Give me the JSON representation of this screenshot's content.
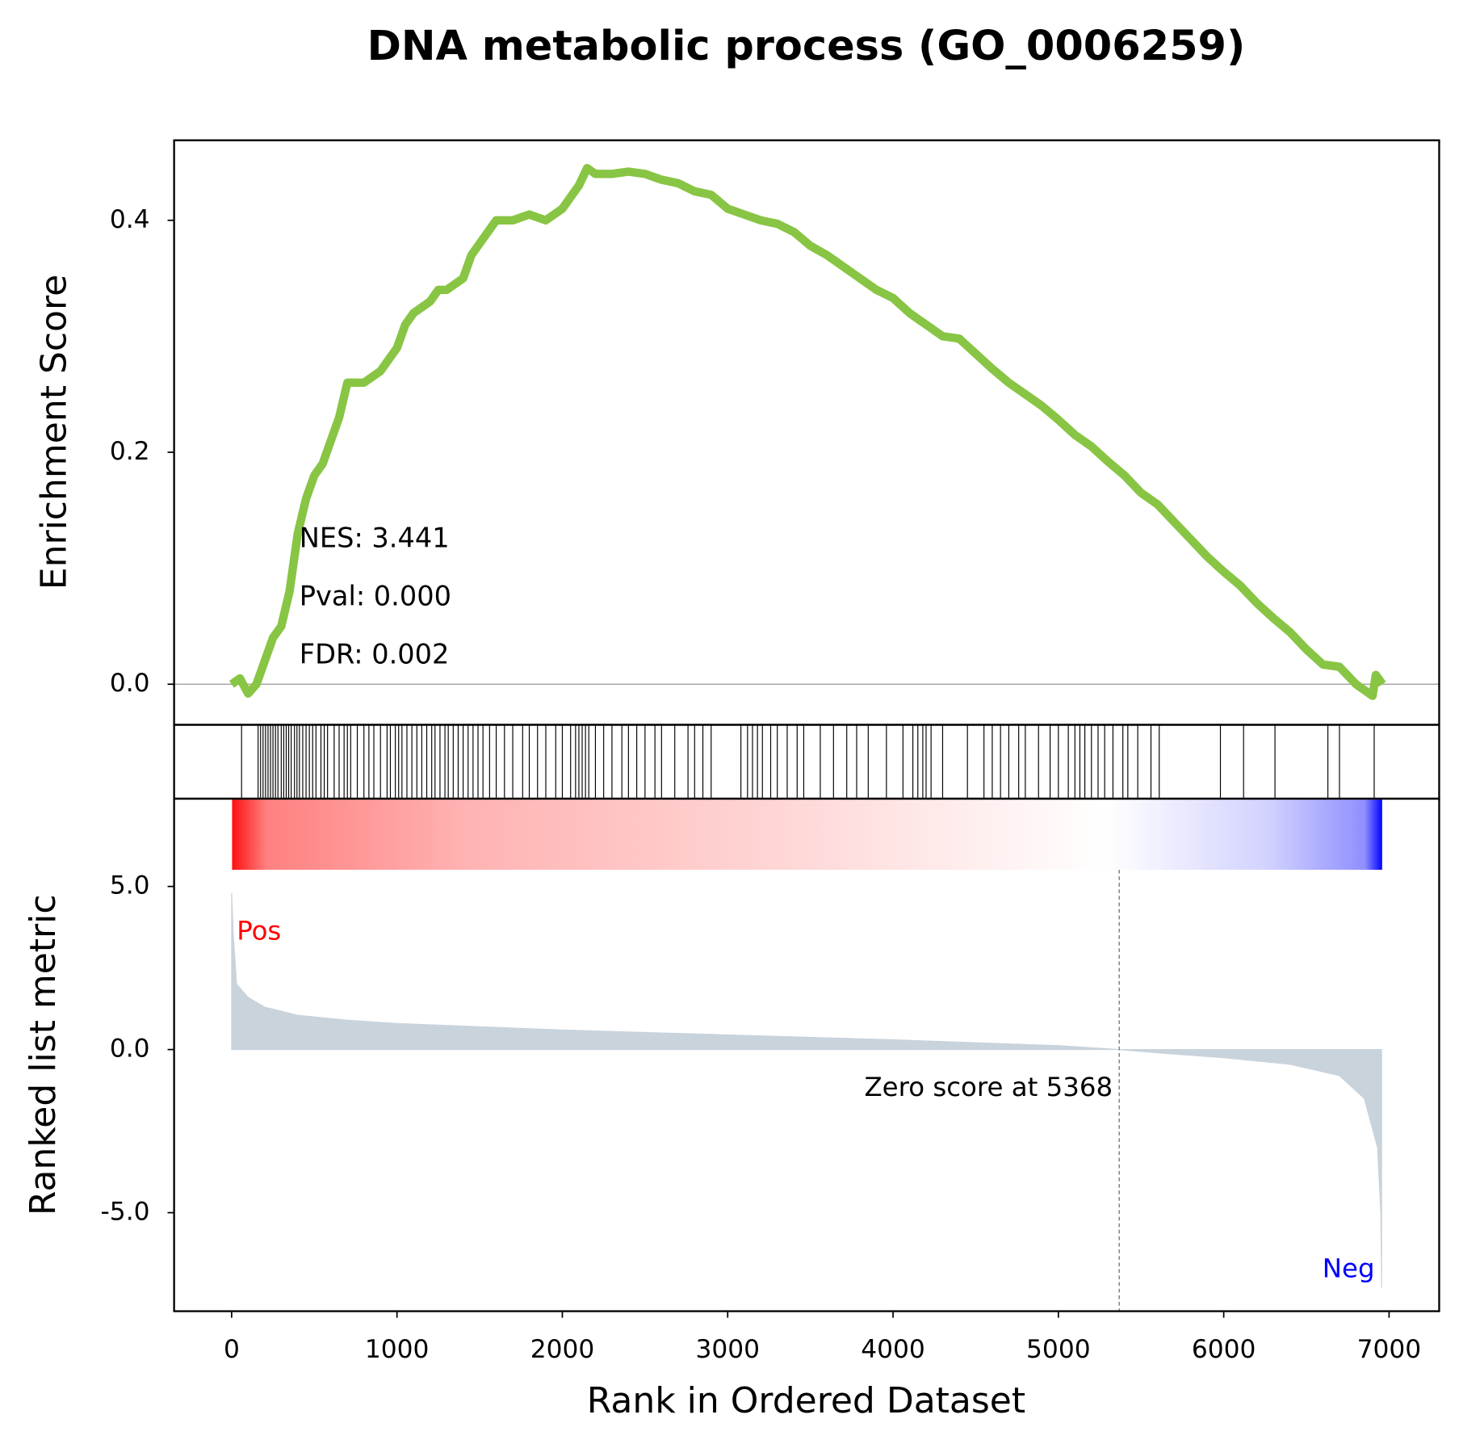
{
  "chart_data": [
    {
      "type": "line",
      "title": "DNA metabolic process (GO_0006259)",
      "ylabel": "Enrichment Score",
      "color": "#88c544",
      "x": [
        0,
        50,
        100,
        150,
        200,
        250,
        300,
        350,
        400,
        450,
        500,
        550,
        600,
        650,
        700,
        800,
        900,
        1000,
        1050,
        1100,
        1200,
        1250,
        1300,
        1400,
        1450,
        1500,
        1550,
        1600,
        1700,
        1800,
        1900,
        2000,
        2050,
        2100,
        2150,
        2200,
        2300,
        2400,
        2500,
        2600,
        2700,
        2800,
        2900,
        3000,
        3100,
        3200,
        3300,
        3400,
        3500,
        3600,
        3700,
        3800,
        3900,
        4000,
        4100,
        4200,
        4300,
        4400,
        4500,
        4600,
        4700,
        4800,
        4900,
        5000,
        5100,
        5200,
        5300,
        5400,
        5500,
        5600,
        5700,
        5800,
        5900,
        6000,
        6100,
        6200,
        6300,
        6400,
        6500,
        6600,
        6700,
        6800,
        6900,
        6920,
        6960
      ],
      "values": [
        0,
        0.005,
        -0.008,
        0.0,
        0.02,
        0.04,
        0.05,
        0.08,
        0.13,
        0.16,
        0.18,
        0.19,
        0.21,
        0.23,
        0.26,
        0.26,
        0.27,
        0.29,
        0.31,
        0.32,
        0.33,
        0.34,
        0.34,
        0.35,
        0.37,
        0.38,
        0.39,
        0.4,
        0.4,
        0.405,
        0.4,
        0.41,
        0.42,
        0.43,
        0.445,
        0.44,
        0.44,
        0.442,
        0.44,
        0.435,
        0.432,
        0.425,
        0.422,
        0.41,
        0.405,
        0.4,
        0.397,
        0.39,
        0.378,
        0.37,
        0.36,
        0.35,
        0.34,
        0.333,
        0.32,
        0.31,
        0.3,
        0.298,
        0.285,
        0.272,
        0.26,
        0.25,
        0.24,
        0.228,
        0.215,
        0.205,
        0.192,
        0.18,
        0.165,
        0.155,
        0.14,
        0.125,
        0.11,
        0.097,
        0.085,
        0.07,
        0.057,
        0.045,
        0.03,
        0.017,
        0.015,
        0.0,
        -0.01,
        0.008,
        0.0
      ],
      "xlim": [
        -348,
        7303
      ],
      "ylim": [
        -0.035,
        0.469
      ],
      "yticks": [
        {
          "value": 0,
          "label": "0.0"
        },
        0.2,
        0.4
      ],
      "annotations": [
        "NES: 3.441",
        "Pval: 0.000",
        "FDR: 0.002"
      ]
    },
    {
      "type": "rug",
      "color": "#000000",
      "xlim": [
        -348,
        7303
      ],
      "hits": [
        60,
        160,
        175,
        190,
        205,
        220,
        235,
        250,
        265,
        280,
        300,
        315,
        330,
        345,
        360,
        380,
        395,
        410,
        430,
        450,
        470,
        490,
        510,
        540,
        560,
        580,
        620,
        650,
        680,
        700,
        720,
        760,
        800,
        830,
        860,
        900,
        940,
        960,
        990,
        1010,
        1030,
        1060,
        1090,
        1120,
        1150,
        1180,
        1210,
        1230,
        1260,
        1290,
        1310,
        1340,
        1370,
        1400,
        1430,
        1460,
        1490,
        1520,
        1560,
        1600,
        1650,
        1700,
        1760,
        1800,
        1850,
        1900,
        1960,
        2000,
        2050,
        2080,
        2100,
        2120,
        2140,
        2160,
        2200,
        2250,
        2300,
        2360,
        2400,
        2450,
        2500,
        2560,
        2600,
        2680,
        2760,
        2800,
        2850,
        2900,
        3080,
        3120,
        3150,
        3180,
        3210,
        3260,
        3300,
        3360,
        3420,
        3460,
        3560,
        3640,
        3720,
        3780,
        3850,
        3960,
        4060,
        4120,
        4150,
        4180,
        4200,
        4230,
        4300,
        4450,
        4550,
        4600,
        4650,
        4700,
        4760,
        4800,
        4880,
        4950,
        5000,
        5060,
        5100,
        5130,
        5160,
        5200,
        5240,
        5280,
        5330,
        5390,
        5420,
        5480,
        5560,
        5610,
        5980,
        6120,
        6310,
        6630,
        6700,
        6910
      ]
    },
    {
      "type": "area",
      "ylabel": "Ranked list metric",
      "xlabel": "Rank in Ordered Dataset",
      "color": "#c9d3dc",
      "x": [
        0,
        10,
        30,
        100,
        200,
        400,
        700,
        1000,
        1500,
        2000,
        3000,
        4000,
        5000,
        5368,
        5600,
        6000,
        6400,
        6700,
        6850,
        6930,
        6950,
        6955
      ],
      "values": [
        4.8,
        3.5,
        2.0,
        1.6,
        1.3,
        1.05,
        0.9,
        0.8,
        0.7,
        0.6,
        0.45,
        0.3,
        0.12,
        0.0,
        -0.1,
        -0.25,
        -0.45,
        -0.8,
        -1.5,
        -3.0,
        -5.0,
        -7.3
      ],
      "xlim": [
        -348,
        7303
      ],
      "ylim": [
        -8.02,
        7.69
      ],
      "xticks": [
        0,
        1000,
        2000,
        3000,
        4000,
        5000,
        6000,
        7000
      ],
      "yticks": [
        {
          "value": 5,
          "label": "5.0"
        },
        {
          "value": 0,
          "label": "0.0"
        },
        {
          "value": -5,
          "label": "-5.0"
        }
      ],
      "pos_label": "Pos",
      "neg_label": "Neg",
      "zero_rank": 5368,
      "zero_label": "Zero score at 5368"
    }
  ]
}
